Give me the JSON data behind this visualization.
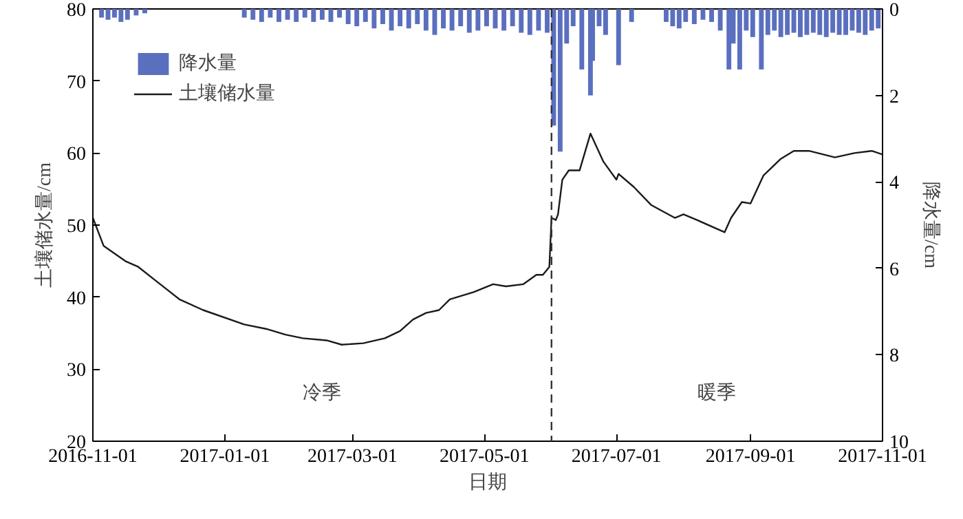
{
  "chart_data": {
    "type": "line",
    "xlabel": "日期",
    "ylabel": "土壤储水量/cm",
    "y2label": "降水量/cm",
    "xlim": [
      "2016-11-01",
      "2017-11-01"
    ],
    "xticks": [
      "2016-11-01",
      "2017-01-01",
      "2017-03-01",
      "2017-05-01",
      "2017-07-01",
      "2017-09-01",
      "2017-11-01"
    ],
    "ylim": [
      20,
      80
    ],
    "yticks": [
      20,
      30,
      40,
      50,
      60,
      70,
      80
    ],
    "y2lim": [
      10,
      0
    ],
    "y2ticks": [
      0,
      2,
      4,
      6,
      8,
      10
    ],
    "legend": "top left",
    "grid": false,
    "series": [
      {
        "name": "降水量",
        "type": "bar",
        "axis": "y2",
        "color": "#5b6fbf",
        "x": [
          "2016-11-05",
          "2016-11-08",
          "2016-11-11",
          "2016-11-14",
          "2016-11-17",
          "2016-11-21",
          "2016-11-25",
          "2017-01-10",
          "2017-01-14",
          "2017-01-18",
          "2017-01-22",
          "2017-01-26",
          "2017-01-30",
          "2017-02-03",
          "2017-02-07",
          "2017-02-11",
          "2017-02-15",
          "2017-02-19",
          "2017-02-23",
          "2017-02-27",
          "2017-03-03",
          "2017-03-07",
          "2017-03-11",
          "2017-03-15",
          "2017-03-19",
          "2017-03-23",
          "2017-03-27",
          "2017-03-31",
          "2017-04-04",
          "2017-04-08",
          "2017-04-12",
          "2017-04-16",
          "2017-04-20",
          "2017-04-24",
          "2017-04-28",
          "2017-05-02",
          "2017-05-06",
          "2017-05-10",
          "2017-05-14",
          "2017-05-18",
          "2017-05-22",
          "2017-05-26",
          "2017-05-30",
          "2017-06-02",
          "2017-06-05",
          "2017-06-08",
          "2017-06-11",
          "2017-06-15",
          "2017-06-19",
          "2017-06-20",
          "2017-06-23",
          "2017-06-26",
          "2017-07-02",
          "2017-07-08",
          "2017-07-24",
          "2017-07-27",
          "2017-07-30",
          "2017-08-02",
          "2017-08-06",
          "2017-08-10",
          "2017-08-14",
          "2017-08-18",
          "2017-08-22",
          "2017-08-24",
          "2017-08-27",
          "2017-08-30",
          "2017-09-02",
          "2017-09-06",
          "2017-09-09",
          "2017-09-12",
          "2017-09-15",
          "2017-09-18",
          "2017-09-21",
          "2017-09-24",
          "2017-09-27",
          "2017-09-30",
          "2017-10-03",
          "2017-10-06",
          "2017-10-09",
          "2017-10-12",
          "2017-10-15",
          "2017-10-18",
          "2017-10-21",
          "2017-10-24",
          "2017-10-27",
          "2017-10-30"
        ],
        "values": [
          0.2,
          0.25,
          0.2,
          0.3,
          0.25,
          0.15,
          0.1,
          0.2,
          0.25,
          0.3,
          0.2,
          0.3,
          0.25,
          0.3,
          0.2,
          0.3,
          0.25,
          0.3,
          0.2,
          0.35,
          0.4,
          0.3,
          0.45,
          0.35,
          0.5,
          0.4,
          0.45,
          0.35,
          0.5,
          0.6,
          0.45,
          0.5,
          0.4,
          0.55,
          0.5,
          0.4,
          0.45,
          0.5,
          0.4,
          0.55,
          0.6,
          0.5,
          0.55,
          2.7,
          3.3,
          0.8,
          0.4,
          1.4,
          2.0,
          1.2,
          0.4,
          0.6,
          1.3,
          0.3,
          0.3,
          0.4,
          0.45,
          0.3,
          0.35,
          0.25,
          0.3,
          0.5,
          1.4,
          0.8,
          1.4,
          0.5,
          0.65,
          1.4,
          0.6,
          0.5,
          0.65,
          0.6,
          0.55,
          0.65,
          0.6,
          0.55,
          0.6,
          0.65,
          0.55,
          0.6,
          0.6,
          0.5,
          0.55,
          0.6,
          0.5,
          0.45
        ]
      },
      {
        "name": "土壤储水量",
        "color": "#1a1a1a",
        "x": [
          "2016-11-01",
          "2016-11-06",
          "2016-11-16",
          "2016-11-22",
          "2016-11-30",
          "2016-12-11",
          "2016-12-22",
          "2017-01-10",
          "2017-01-20",
          "2017-01-29",
          "2017-02-06",
          "2017-02-17",
          "2017-02-24",
          "2017-03-06",
          "2017-03-16",
          "2017-03-23",
          "2017-03-29",
          "2017-04-04",
          "2017-04-10",
          "2017-04-15",
          "2017-04-26",
          "2017-05-05",
          "2017-05-11",
          "2017-05-19",
          "2017-05-25",
          "2017-05-28",
          "2017-05-31",
          "2017-06-01",
          "2017-06-03",
          "2017-06-04",
          "2017-06-06",
          "2017-06-09",
          "2017-06-14",
          "2017-06-19",
          "2017-06-25",
          "2017-07-01",
          "2017-07-02",
          "2017-07-09",
          "2017-07-17",
          "2017-07-28",
          "2017-08-01",
          "2017-08-08",
          "2017-08-20",
          "2017-08-23",
          "2017-08-28",
          "2017-09-01",
          "2017-09-07",
          "2017-09-15",
          "2017-09-21",
          "2017-09-28",
          "2017-10-10",
          "2017-10-19",
          "2017-10-27",
          "2017-11-01"
        ],
        "values": [
          51.0,
          47.1,
          45.0,
          44.2,
          42.3,
          39.7,
          38.2,
          36.2,
          35.6,
          34.8,
          34.3,
          34.0,
          33.4,
          33.6,
          34.3,
          35.3,
          36.9,
          37.8,
          38.2,
          39.7,
          40.7,
          41.8,
          41.5,
          41.8,
          43.1,
          43.1,
          44.2,
          51.0,
          50.7,
          51.5,
          56.3,
          57.6,
          57.6,
          62.7,
          58.8,
          56.3,
          57.1,
          55.3,
          52.8,
          51.0,
          51.5,
          50.6,
          49.0,
          51.0,
          53.2,
          53.0,
          56.9,
          59.2,
          60.3,
          60.3,
          59.4,
          60.0,
          60.3,
          59.8
        ]
      }
    ],
    "ref_lines": [
      {
        "axis": "x",
        "value": "2017-06-01",
        "color": "#333333",
        "line_style": "dashed"
      }
    ],
    "annotations": [
      "冷季",
      "暖季"
    ]
  }
}
